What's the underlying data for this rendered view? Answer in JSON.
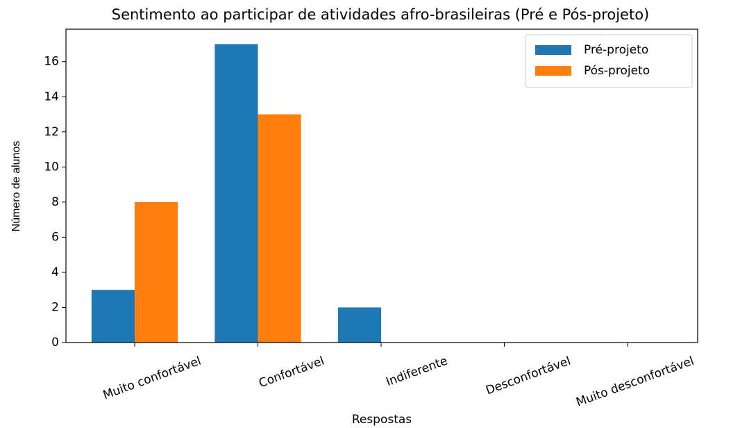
{
  "chart_data": {
    "type": "bar",
    "title": "Sentimento ao participar de atividades afro-brasileiras (Pré e Pós-projeto)",
    "xlabel": "Respostas",
    "ylabel": "Número de alunos",
    "categories": [
      "Muito confortável",
      "Confortável",
      "Indiferente",
      "Desconfortável",
      "Muito desconfortável"
    ],
    "series": [
      {
        "name": "Pré-projeto",
        "color": "#1f77b4",
        "values": [
          3,
          17,
          2,
          0,
          0
        ]
      },
      {
        "name": "Pós-projeto",
        "color": "#ff7f0e",
        "values": [
          8,
          13,
          0,
          0,
          0
        ]
      }
    ],
    "ylim": [
      0,
      17.85
    ],
    "yticks": [
      0,
      2,
      4,
      6,
      8,
      10,
      12,
      14,
      16
    ],
    "legend": "upper right",
    "grid": false
  }
}
